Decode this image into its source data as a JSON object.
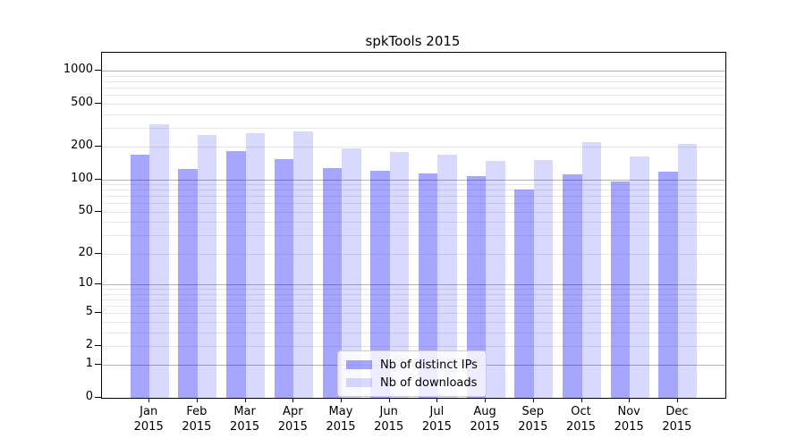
{
  "chart_data": {
    "type": "bar",
    "title": "spkTools 2015",
    "categories": [
      "Jan 2015",
      "Feb 2015",
      "Mar 2015",
      "Apr 2015",
      "May 2015",
      "Jun 2015",
      "Jul 2015",
      "Aug 2015",
      "Sep 2015",
      "Oct 2015",
      "Nov 2015",
      "Dec 2015"
    ],
    "series": [
      {
        "name": "Nb of distinct IPs",
        "color": "rgba(0,0,255,0.35)",
        "color_hex": "#a6a6ff",
        "values": [
          170,
          125,
          183,
          155,
          128,
          121,
          114,
          108,
          80,
          111,
          95,
          117
        ]
      },
      {
        "name": "Nb of downloads",
        "color": "rgba(0,0,255,0.15)",
        "color_hex": "#d9d9ff",
        "values": [
          325,
          257,
          268,
          276,
          193,
          180,
          170,
          147,
          151,
          223,
          162,
          213
        ]
      }
    ],
    "yscale": "log1p",
    "ylim": [
      0,
      1465
    ],
    "yticks": [
      0,
      1,
      2,
      5,
      10,
      20,
      50,
      100,
      200,
      500,
      1000
    ],
    "grid": true,
    "gridlines": {
      "major_values": [
        1,
        10,
        100,
        1000
      ],
      "minor_values": [
        2,
        3,
        4,
        5,
        6,
        7,
        8,
        9,
        20,
        30,
        40,
        50,
        60,
        70,
        80,
        90,
        200,
        300,
        400,
        500,
        600,
        700,
        800,
        900
      ]
    },
    "legend_position": "lower center (inside axes)"
  },
  "legend": {
    "items": [
      {
        "label": "Nb of distinct IPs"
      },
      {
        "label": "Nb of downloads"
      }
    ]
  },
  "colors": {
    "major_grid": "#b3b3b3",
    "minor_grid": "#e8e8e8",
    "spine": "#000000",
    "text": "#000000",
    "background": "#ffffff"
  }
}
